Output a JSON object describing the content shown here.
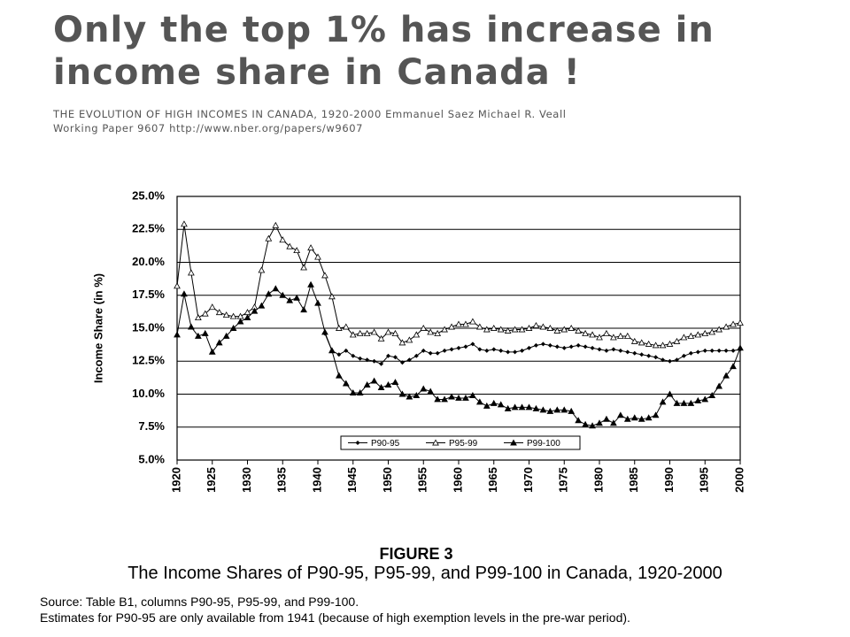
{
  "slide": {
    "title": "Only the top 1% has increase in income share in Canada !",
    "citation": [
      "THE EVOLUTION OF HIGH INCOMES IN CANADA, 1920-2000 Emmanuel Saez Michael R. Veall",
      "Working Paper 9607  http://www.nber.org/papers/w9607"
    ]
  },
  "chart_data": {
    "type": "line",
    "y_label": "Income Share (in %)",
    "x": [
      1920,
      1921,
      1922,
      1923,
      1924,
      1925,
      1926,
      1927,
      1928,
      1929,
      1930,
      1931,
      1932,
      1933,
      1934,
      1935,
      1936,
      1937,
      1938,
      1939,
      1940,
      1941,
      1942,
      1943,
      1944,
      1945,
      1946,
      1947,
      1948,
      1949,
      1950,
      1951,
      1952,
      1953,
      1954,
      1955,
      1956,
      1957,
      1958,
      1959,
      1960,
      1961,
      1962,
      1963,
      1964,
      1965,
      1966,
      1967,
      1968,
      1969,
      1970,
      1971,
      1972,
      1973,
      1974,
      1975,
      1976,
      1977,
      1978,
      1979,
      1980,
      1981,
      1982,
      1983,
      1984,
      1985,
      1986,
      1987,
      1988,
      1989,
      1990,
      1991,
      1992,
      1993,
      1994,
      1995,
      1996,
      1997,
      1998,
      1999,
      2000
    ],
    "xlim": [
      1920,
      2000
    ],
    "xticks": [
      1920,
      1925,
      1930,
      1935,
      1940,
      1945,
      1950,
      1955,
      1960,
      1965,
      1970,
      1975,
      1980,
      1985,
      1990,
      1995,
      2000
    ],
    "ylim": [
      5,
      25
    ],
    "yticks": [
      {
        "value": 5,
        "label": "5.0%"
      },
      {
        "value": 7.5,
        "label": "7.5%"
      },
      {
        "value": 10,
        "label": "10.0%"
      },
      {
        "value": 12.5,
        "label": "12.5%"
      },
      {
        "value": 15,
        "label": "15.0%"
      },
      {
        "value": 17.5,
        "label": "17.5%"
      },
      {
        "value": 20,
        "label": "20.0%"
      },
      {
        "value": 22.5,
        "label": "22.5%"
      },
      {
        "value": 25,
        "label": "25.0%"
      }
    ],
    "grid": true,
    "legend": "lower center",
    "series": [
      {
        "name": "P90-95",
        "color": "#000000",
        "marker": "diamond",
        "values": [
          null,
          null,
          null,
          null,
          null,
          null,
          null,
          null,
          null,
          null,
          null,
          null,
          null,
          null,
          null,
          null,
          null,
          null,
          null,
          null,
          null,
          14.6,
          13.3,
          13.0,
          13.3,
          12.9,
          12.7,
          12.6,
          12.5,
          12.3,
          12.9,
          12.8,
          12.4,
          12.6,
          12.9,
          13.3,
          13.1,
          13.1,
          13.3,
          13.4,
          13.5,
          13.6,
          13.8,
          13.4,
          13.3,
          13.4,
          13.3,
          13.2,
          13.2,
          13.3,
          13.5,
          13.7,
          13.8,
          13.7,
          13.6,
          13.5,
          13.6,
          13.7,
          13.6,
          13.5,
          13.4,
          13.3,
          13.4,
          13.3,
          13.2,
          13.1,
          13.0,
          12.9,
          12.8,
          12.6,
          12.5,
          12.6,
          12.9,
          13.1,
          13.2,
          13.3,
          13.3,
          13.3,
          13.3,
          13.3,
          13.4
        ]
      },
      {
        "name": "P95-99",
        "color": "#000000",
        "marker": "triangle-open",
        "values": [
          18.2,
          22.9,
          19.2,
          15.8,
          16.1,
          16.6,
          16.2,
          16.0,
          15.9,
          15.9,
          16.2,
          16.6,
          19.4,
          21.8,
          22.8,
          21.7,
          21.2,
          20.9,
          19.6,
          21.1,
          20.4,
          19.0,
          17.4,
          15.0,
          15.1,
          14.5,
          14.6,
          14.6,
          14.7,
          14.2,
          14.7,
          14.6,
          13.9,
          14.1,
          14.5,
          15.0,
          14.7,
          14.6,
          14.9,
          15.1,
          15.3,
          15.3,
          15.5,
          15.1,
          14.9,
          15.0,
          14.9,
          14.8,
          14.9,
          14.9,
          15.0,
          15.2,
          15.1,
          15.0,
          14.8,
          14.9,
          15.0,
          14.8,
          14.6,
          14.5,
          14.3,
          14.6,
          14.3,
          14.4,
          14.4,
          14.0,
          13.9,
          13.8,
          13.7,
          13.7,
          13.8,
          14.0,
          14.3,
          14.4,
          14.5,
          14.6,
          14.7,
          14.9,
          15.1,
          15.3,
          15.4
        ]
      },
      {
        "name": "P99-100",
        "color": "#000000",
        "marker": "triangle",
        "values": [
          14.5,
          17.6,
          15.1,
          14.4,
          14.6,
          13.2,
          13.9,
          14.4,
          15.0,
          15.5,
          15.8,
          16.3,
          16.7,
          17.6,
          18.0,
          17.5,
          17.1,
          17.3,
          16.4,
          18.3,
          16.9,
          14.7,
          13.3,
          11.4,
          10.8,
          10.1,
          10.1,
          10.7,
          11.0,
          10.5,
          10.7,
          10.9,
          10.0,
          9.8,
          9.9,
          10.4,
          10.2,
          9.6,
          9.6,
          9.8,
          9.7,
          9.7,
          9.9,
          9.4,
          9.1,
          9.3,
          9.2,
          8.9,
          9.0,
          9.0,
          9.0,
          8.9,
          8.8,
          8.7,
          8.8,
          8.8,
          8.7,
          8.0,
          7.7,
          7.6,
          7.8,
          8.1,
          7.8,
          8.4,
          8.1,
          8.2,
          8.1,
          8.2,
          8.4,
          9.4,
          10.0,
          9.3,
          9.3,
          9.3,
          9.5,
          9.6,
          9.9,
          10.6,
          11.4,
          12.1,
          13.5
        ]
      }
    ]
  },
  "figure": {
    "label": "FIGURE 3",
    "caption": "The Income Shares of P90-95, P95-99, and P99-100 in Canada, 1920-2000",
    "notes": [
      "Source: Table B1, columns P90-95, P95-99, and P99-100.",
      "Estimates for P90-95 are only available from 1941 (because of high exemption levels in the pre-war period)."
    ]
  }
}
